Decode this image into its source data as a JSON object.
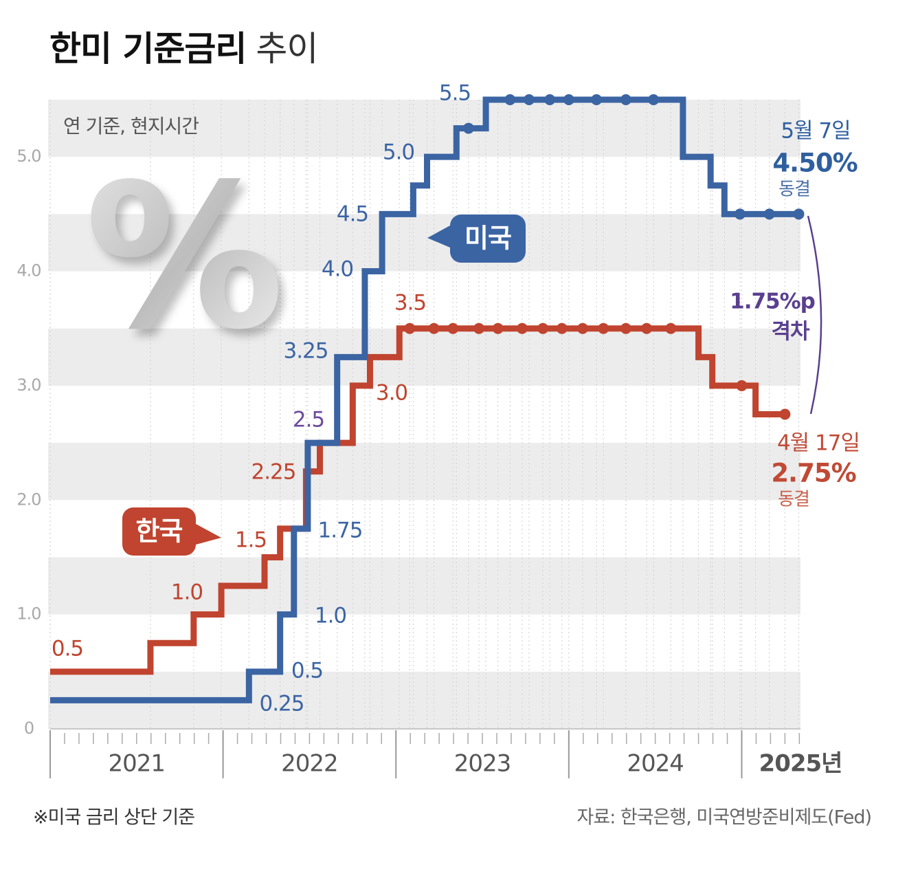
{
  "chart_data": {
    "type": "line",
    "step": true,
    "title": "한미 기준금리",
    "title_suffix": "추이",
    "subtitle": "연 기준, 현지시간",
    "icon": "%",
    "xlim": [
      2021,
      2025.34
    ],
    "xticks": [
      {
        "value": 2021.5,
        "label": "2021"
      },
      {
        "value": 2022.5,
        "label": "2022"
      },
      {
        "value": 2023.5,
        "label": "2023"
      },
      {
        "value": 2024.5,
        "label": "2024"
      },
      {
        "value": 2025.34,
        "label": "2025년"
      }
    ],
    "ylim": [
      0,
      5.5
    ],
    "yticks": [
      0,
      {
        "value": 1,
        "label": "1.0"
      },
      {
        "value": 2,
        "label": "2.0"
      },
      {
        "value": 3,
        "label": "3.0"
      },
      {
        "value": 4,
        "label": "4.0"
      },
      {
        "value": 5,
        "label": "5.0"
      }
    ],
    "grid": "bands",
    "series": [
      {
        "name": "한국",
        "color": "#c0442f",
        "x": [
          2021.0,
          2021.58,
          2021.83,
          2021.99,
          2022.24,
          2022.33,
          2022.48,
          2022.56,
          2022.75,
          2022.85,
          2023.02,
          2023.08,
          2023.22,
          2023.33,
          2023.48,
          2023.59,
          2023.73,
          2023.85,
          2023.96,
          2024.08,
          2024.2,
          2024.33,
          2024.45,
          2024.59,
          2024.75,
          2024.83,
          2025.0,
          2025.08,
          2025.25
        ],
        "values": [
          0.5,
          0.75,
          1,
          1.25,
          1.5,
          1.75,
          2.25,
          2.5,
          3,
          3.25,
          3.5,
          3.5,
          3.5,
          3.5,
          3.5,
          3.5,
          3.5,
          3.5,
          3.5,
          3.5,
          3.5,
          3.5,
          3.5,
          3.5,
          3.25,
          3,
          3,
          2.75,
          2.75
        ],
        "value_labels": [
          "0.5",
          null,
          "1.0",
          null,
          "1.5",
          null,
          "2.25",
          null,
          "3.0",
          null,
          "3.5",
          null,
          null,
          null,
          null,
          null,
          null,
          null,
          null,
          null,
          null,
          null,
          null,
          null,
          null,
          null,
          null,
          null,
          null
        ],
        "held": [
          false,
          false,
          false,
          false,
          false,
          false,
          false,
          false,
          false,
          false,
          false,
          true,
          true,
          true,
          true,
          true,
          true,
          true,
          true,
          true,
          true,
          true,
          true,
          true,
          false,
          false,
          true,
          false,
          true
        ]
      },
      {
        "name": "미국",
        "color": "#3b64a3",
        "x": [
          2021.0,
          2022.15,
          2022.33,
          2022.41,
          2022.49,
          2022.66,
          2022.82,
          2022.92,
          2023.1,
          2023.18,
          2023.35,
          2023.42,
          2023.52,
          2023.66,
          2023.77,
          2023.89,
          2024.0,
          2024.16,
          2024.33,
          2024.49,
          2024.66,
          2024.82,
          2024.9,
          2024.99,
          2025.16,
          2025.33
        ],
        "values": [
          0.25,
          0.5,
          1,
          1.75,
          2.5,
          3.25,
          4,
          4.5,
          4.75,
          5,
          5.25,
          5.25,
          5.5,
          5.5,
          5.5,
          5.5,
          5.5,
          5.5,
          5.5,
          5.5,
          5,
          4.75,
          4.5,
          4.5,
          4.5,
          4.5
        ],
        "value_labels": [
          "0.25",
          "0.5",
          "1.0",
          "1.75",
          "2.5",
          "3.25",
          "4.0",
          "4.5",
          null,
          "5.0",
          null,
          null,
          "5.5",
          null,
          null,
          null,
          null,
          null,
          null,
          null,
          null,
          null,
          null,
          null,
          null,
          null
        ],
        "held": [
          false,
          false,
          false,
          false,
          false,
          false,
          false,
          false,
          false,
          false,
          false,
          true,
          false,
          true,
          true,
          true,
          true,
          true,
          true,
          true,
          false,
          false,
          false,
          true,
          true,
          true
        ]
      }
    ],
    "annotations": [
      "5월 7일",
      "4.50%",
      "동결",
      "4월 17일",
      "2.75%",
      "동결",
      "1.75%p",
      "격차"
    ],
    "footnote": "※미국 금리 상단 기준",
    "source": "자료: 한국은행, 미국연방준비제도(Fed)"
  }
}
